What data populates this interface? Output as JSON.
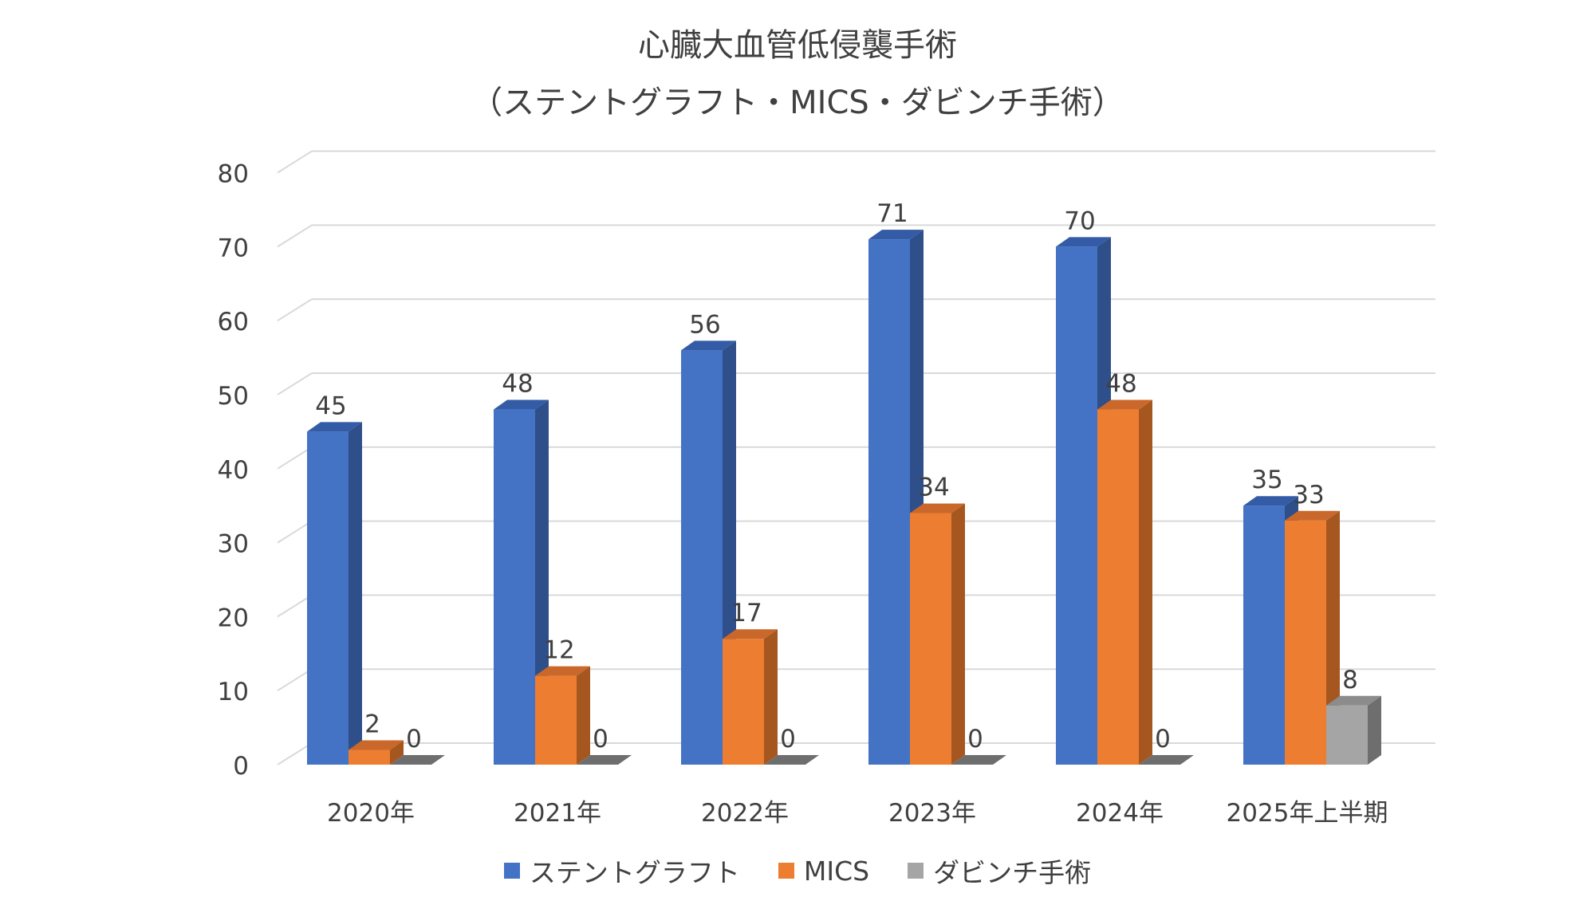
{
  "chart_data": {
    "type": "bar",
    "title": "心臓大血管低侵襲手術",
    "subtitle": "（ステントグラフト・MICS・ダビンチ手術）",
    "categories": [
      "2020年",
      "2021年",
      "2022年",
      "2023年",
      "2024年",
      "2025年上半期"
    ],
    "series": [
      {
        "name": "ステントグラフト",
        "color": "#4472C4",
        "side_color": "#2F4F8A",
        "top_color": "#345BA5",
        "values": [
          45,
          48,
          56,
          71,
          70,
          35
        ]
      },
      {
        "name": "MICS",
        "color": "#ED7D31",
        "side_color": "#A5571F",
        "top_color": "#C9682A",
        "values": [
          2,
          12,
          17,
          34,
          48,
          33
        ]
      },
      {
        "name": "ダビンチ手術",
        "color": "#A5A5A5",
        "side_color": "#6E6E6E",
        "top_color": "#8C8C8C",
        "values": [
          0,
          0,
          0,
          0,
          0,
          8
        ]
      }
    ],
    "ylim": [
      0,
      80
    ],
    "yticks": [
      "0",
      "10",
      "20",
      "30",
      "40",
      "50",
      "60",
      "70",
      "80"
    ],
    "xlabel": "",
    "ylabel": "",
    "legend_position": "bottom",
    "grid": true
  }
}
